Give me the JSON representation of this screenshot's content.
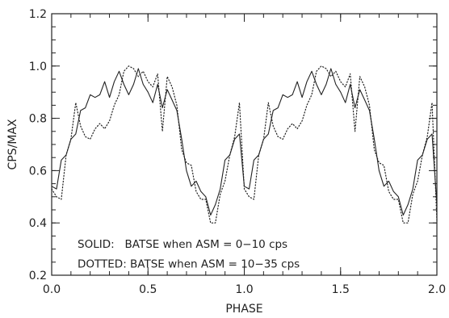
{
  "chart_data": {
    "type": "line",
    "xlabel": "PHASE",
    "ylabel": "CPS/MAX",
    "xlim": [
      0.0,
      2.0
    ],
    "ylim": [
      0.2,
      1.2
    ],
    "x_ticks": [
      {
        "value": 0.0,
        "label": "0.0"
      },
      {
        "value": 0.5,
        "label": "0.5"
      },
      {
        "value": 1.0,
        "label": "1.0"
      },
      {
        "value": 1.5,
        "label": "1.5"
      },
      {
        "value": 2.0,
        "label": "2.0"
      }
    ],
    "y_ticks": [
      {
        "value": 0.2,
        "label": "0.2"
      },
      {
        "value": 0.4,
        "label": "0.4"
      },
      {
        "value": 0.6,
        "label": "0.6"
      },
      {
        "value": 0.8,
        "label": "0.8"
      },
      {
        "value": 1.0,
        "label": "1.0"
      },
      {
        "value": 1.2,
        "label": "1.2"
      }
    ],
    "x_minor_step": 0.1,
    "y_minor_step": 0.05,
    "grid": false,
    "series": [
      {
        "style": "solid",
        "color": "#222222",
        "x": [
          0.0,
          0.025,
          0.05,
          0.075,
          0.1,
          0.125,
          0.15,
          0.175,
          0.2,
          0.225,
          0.25,
          0.275,
          0.3,
          0.325,
          0.35,
          0.375,
          0.4,
          0.425,
          0.45,
          0.475,
          0.5,
          0.525,
          0.55,
          0.575,
          0.6,
          0.625,
          0.65,
          0.675,
          0.7,
          0.725,
          0.75,
          0.775,
          0.8,
          0.825,
          0.85,
          0.875,
          0.9,
          0.925,
          0.95,
          0.975,
          1.0,
          1.025,
          1.05,
          1.075,
          1.1,
          1.125,
          1.15,
          1.175,
          1.2,
          1.225,
          1.25,
          1.275,
          1.3,
          1.325,
          1.35,
          1.375,
          1.4,
          1.425,
          1.45,
          1.475,
          1.5,
          1.525,
          1.55,
          1.575,
          1.6,
          1.625,
          1.65,
          1.675,
          1.7,
          1.725,
          1.75,
          1.775,
          1.8,
          1.825,
          1.85,
          1.875,
          1.9,
          1.925,
          1.95,
          1.975,
          2.0
        ],
        "y": [
          0.54,
          0.53,
          0.64,
          0.66,
          0.72,
          0.74,
          0.83,
          0.84,
          0.89,
          0.88,
          0.89,
          0.94,
          0.88,
          0.94,
          0.98,
          0.93,
          0.89,
          0.93,
          0.99,
          0.93,
          0.9,
          0.86,
          0.93,
          0.84,
          0.91,
          0.87,
          0.83,
          0.72,
          0.6,
          0.54,
          0.56,
          0.52,
          0.5,
          0.43,
          0.47,
          0.53,
          0.64,
          0.66,
          0.72,
          0.74,
          0.54,
          0.53,
          0.64,
          0.66,
          0.72,
          0.74,
          0.83,
          0.84,
          0.89,
          0.88,
          0.89,
          0.94,
          0.88,
          0.94,
          0.98,
          0.93,
          0.89,
          0.93,
          0.99,
          0.93,
          0.9,
          0.86,
          0.93,
          0.84,
          0.91,
          0.87,
          0.83,
          0.72,
          0.6,
          0.54,
          0.56,
          0.52,
          0.5,
          0.43,
          0.47,
          0.53,
          0.64,
          0.66,
          0.72,
          0.74,
          0.47
        ]
      },
      {
        "style": "dotted",
        "color": "#222222",
        "x": [
          0.0,
          0.025,
          0.05,
          0.075,
          0.1,
          0.125,
          0.15,
          0.175,
          0.2,
          0.225,
          0.25,
          0.275,
          0.3,
          0.325,
          0.35,
          0.375,
          0.4,
          0.425,
          0.45,
          0.475,
          0.5,
          0.525,
          0.55,
          0.575,
          0.6,
          0.625,
          0.65,
          0.675,
          0.7,
          0.725,
          0.75,
          0.775,
          0.8,
          0.825,
          0.85,
          0.875,
          0.9,
          0.925,
          0.95,
          0.975,
          1.0,
          1.025,
          1.05,
          1.075,
          1.1,
          1.125,
          1.15,
          1.175,
          1.2,
          1.225,
          1.25,
          1.275,
          1.3,
          1.325,
          1.35,
          1.375,
          1.4,
          1.425,
          1.45,
          1.475,
          1.5,
          1.525,
          1.55,
          1.575,
          1.6,
          1.625,
          1.65,
          1.675,
          1.7,
          1.725,
          1.75,
          1.775,
          1.8,
          1.825,
          1.85,
          1.875,
          1.9,
          1.925,
          1.95,
          1.975,
          2.0
        ],
        "y": [
          0.53,
          0.5,
          0.49,
          0.66,
          0.72,
          0.86,
          0.77,
          0.73,
          0.72,
          0.76,
          0.78,
          0.76,
          0.79,
          0.85,
          0.89,
          0.98,
          1.0,
          0.99,
          0.96,
          0.98,
          0.94,
          0.92,
          0.97,
          0.75,
          0.96,
          0.92,
          0.85,
          0.68,
          0.63,
          0.62,
          0.52,
          0.49,
          0.49,
          0.4,
          0.4,
          0.51,
          0.56,
          0.66,
          0.73,
          0.86,
          0.53,
          0.5,
          0.49,
          0.66,
          0.72,
          0.86,
          0.77,
          0.73,
          0.72,
          0.76,
          0.78,
          0.76,
          0.79,
          0.85,
          0.89,
          0.98,
          1.0,
          0.99,
          0.96,
          0.98,
          0.94,
          0.92,
          0.97,
          0.75,
          0.96,
          0.92,
          0.85,
          0.68,
          0.63,
          0.62,
          0.52,
          0.49,
          0.49,
          0.4,
          0.4,
          0.51,
          0.56,
          0.66,
          0.73,
          0.86,
          0.41
        ]
      }
    ],
    "annotations": {
      "solid_label": "SOLID:   BATSE when ASM = 0−10 cps",
      "dotted_label": "DOTTED: BATSE when ASM = 10−35 cps"
    }
  }
}
